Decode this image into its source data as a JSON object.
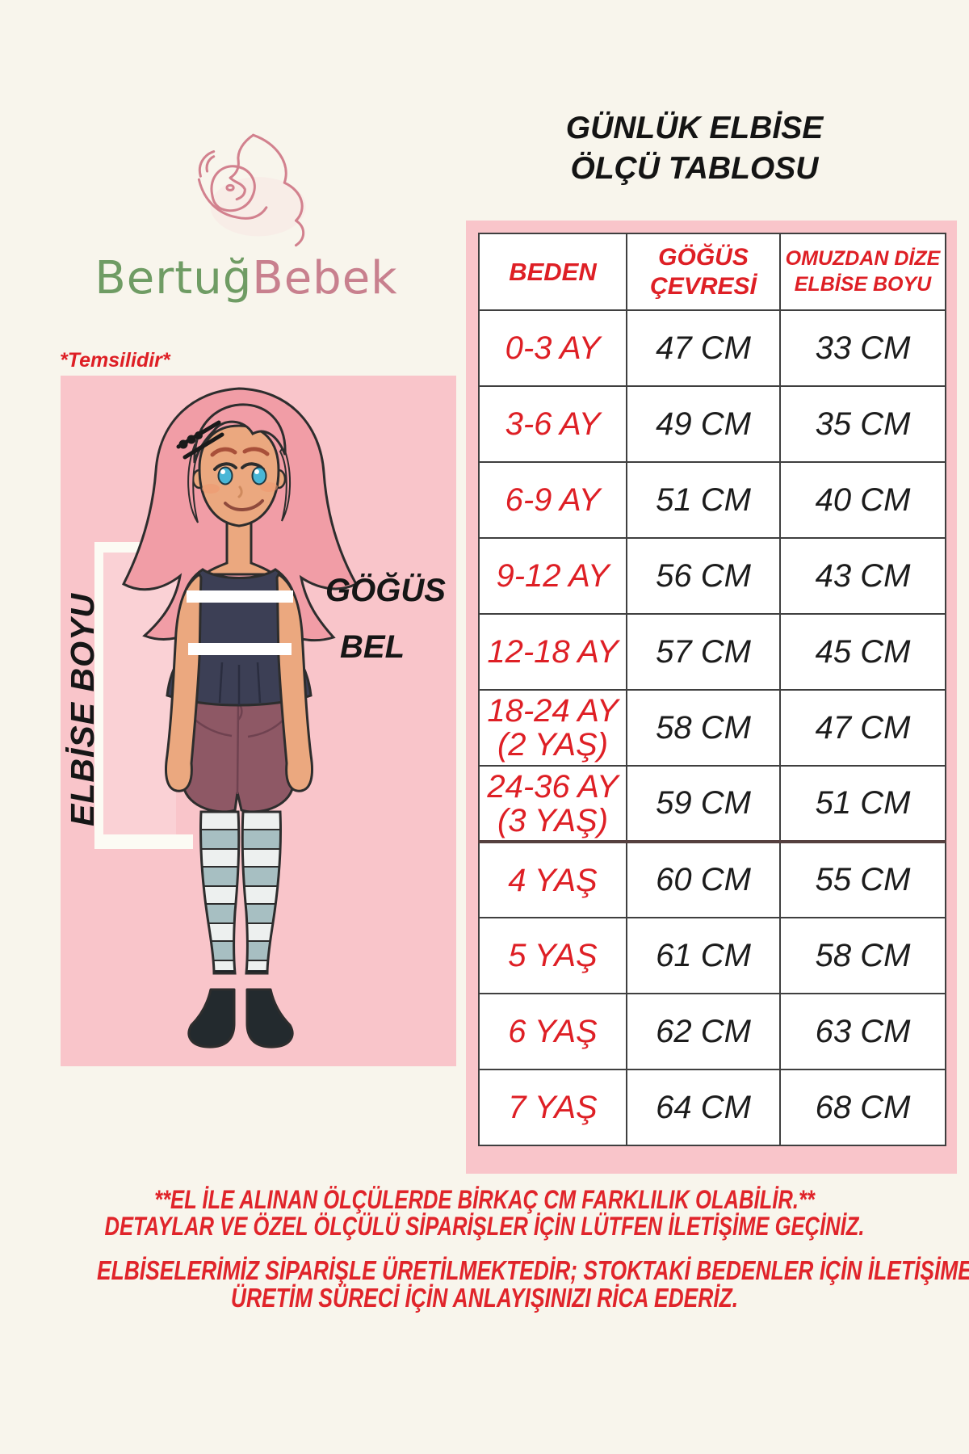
{
  "brand": {
    "wordmark_part1": "Bertuğ",
    "wordmark_part2": "Bebek",
    "part1_color": "#6f9c64",
    "part2_color": "#c8808e",
    "logo_icon": "mother-baby-line-art"
  },
  "title": {
    "line1": "GÜNLÜK ELBİSE",
    "line2": "ÖLÇÜ TABLOSU"
  },
  "figure": {
    "note": "*Temsilidir*",
    "dress_length_label": "ELBİSE BOYU",
    "chest_label": "GÖĞÜS",
    "waist_label": "BEL"
  },
  "size_table": {
    "headers": [
      "BEDEN",
      "GÖĞÜS ÇEVRESİ",
      "OMUZDAN DİZE ELBİSE BOYU"
    ],
    "rows": [
      {
        "size": "0-3 AY",
        "chest": "47 CM",
        "length": "33 CM"
      },
      {
        "size": "3-6 AY",
        "chest": "49 CM",
        "length": "35 CM"
      },
      {
        "size": "6-9 AY",
        "chest": "51 CM",
        "length": "40 CM"
      },
      {
        "size": "9-12 AY",
        "chest": "56 CM",
        "length": "43 CM"
      },
      {
        "size": "12-18 AY",
        "chest": "57 CM",
        "length": "45 CM"
      },
      {
        "size": "18-24 AY (2 YAŞ)",
        "chest": "58 CM",
        "length": "47 CM"
      },
      {
        "size": "24-36 AY (3 YAŞ)",
        "chest": "59 CM",
        "length": "51 CM"
      },
      {
        "size": "4 YAŞ",
        "chest": "60 CM",
        "length": "55 CM"
      },
      {
        "size": "5 YAŞ",
        "chest": "61 CM",
        "length": "58 CM"
      },
      {
        "size": "6 YAŞ",
        "chest": "62 CM",
        "length": "63 CM"
      },
      {
        "size": "7 YAŞ",
        "chest": "64 CM",
        "length": "68 CM"
      }
    ]
  },
  "footer": {
    "para1_line1": "**EL İLE ALINAN ÖLÇÜLERDE BİRKAÇ CM FARKLILIK OLABİLİR.**",
    "para1_line2": "DETAYLAR VE ÖZEL ÖLÇÜLÜ SİPARİŞLER İÇİN LÜTFEN İLETİŞİME GEÇİNİZ.",
    "para2_line1": "ELBİSELERİMİZ SİPARİŞLE ÜRETİLMEKTEDİR; STOKTAKİ BEDENLER İÇİN İLETİŞİME GEÇİNİZ.",
    "para2_line2": "ÜRETİM SÜRECİ İÇİN ANLAYIŞINIZI RİCA EDERİZ."
  },
  "colors": {
    "background": "#f8f5ec",
    "panel_pink": "#f9c5ca",
    "accent_red": "#de1f25",
    "text_black": "#1c1c1c"
  }
}
